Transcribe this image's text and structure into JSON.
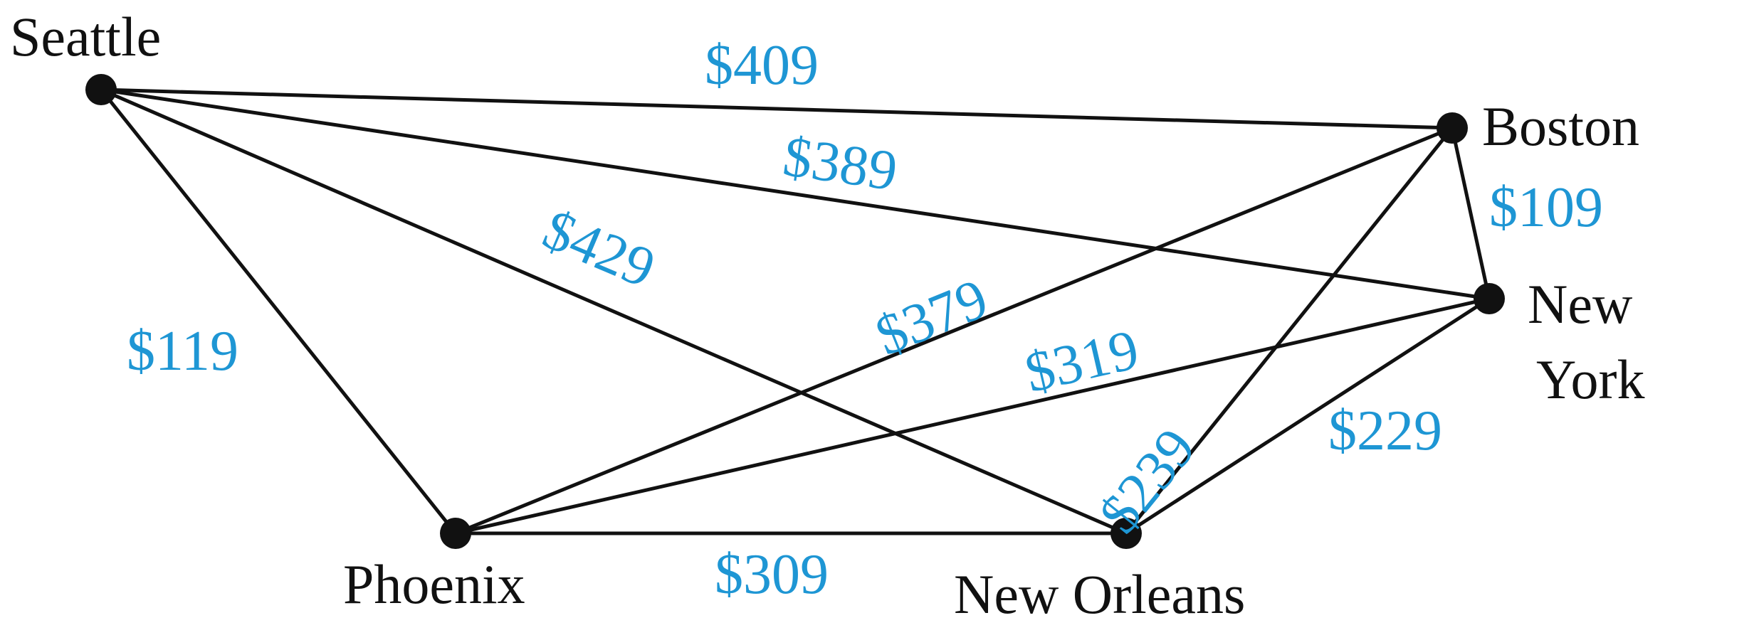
{
  "cities": [
    {
      "id": "seattle",
      "label": "Seattle"
    },
    {
      "id": "boston",
      "label": "Boston"
    },
    {
      "id": "newyork",
      "label_line1": "New",
      "label_line2": "York"
    },
    {
      "id": "phoenix",
      "label": "Phoenix"
    },
    {
      "id": "neworleans",
      "label": "New Orleans"
    }
  ],
  "routes": [
    {
      "from": "Seattle",
      "to": "Boston",
      "cost": "$409"
    },
    {
      "from": "Seattle",
      "to": "New York",
      "cost": "$389"
    },
    {
      "from": "Seattle",
      "to": "New Orleans",
      "cost": "$429"
    },
    {
      "from": "Seattle",
      "to": "Phoenix",
      "cost": "$119"
    },
    {
      "from": "Boston",
      "to": "New York",
      "cost": "$109"
    },
    {
      "from": "Boston",
      "to": "Phoenix",
      "cost": "$379"
    },
    {
      "from": "Boston",
      "to": "New Orleans",
      "cost": "$239"
    },
    {
      "from": "New York",
      "to": "Phoenix",
      "cost": "$319"
    },
    {
      "from": "New York",
      "to": "New Orleans",
      "cost": "$229"
    },
    {
      "from": "Phoenix",
      "to": "New Orleans",
      "cost": "$309"
    }
  ],
  "colors": {
    "edge": "#111111",
    "node": "#111111",
    "cost_label": "#1e96d4",
    "city_label": "#111111"
  }
}
